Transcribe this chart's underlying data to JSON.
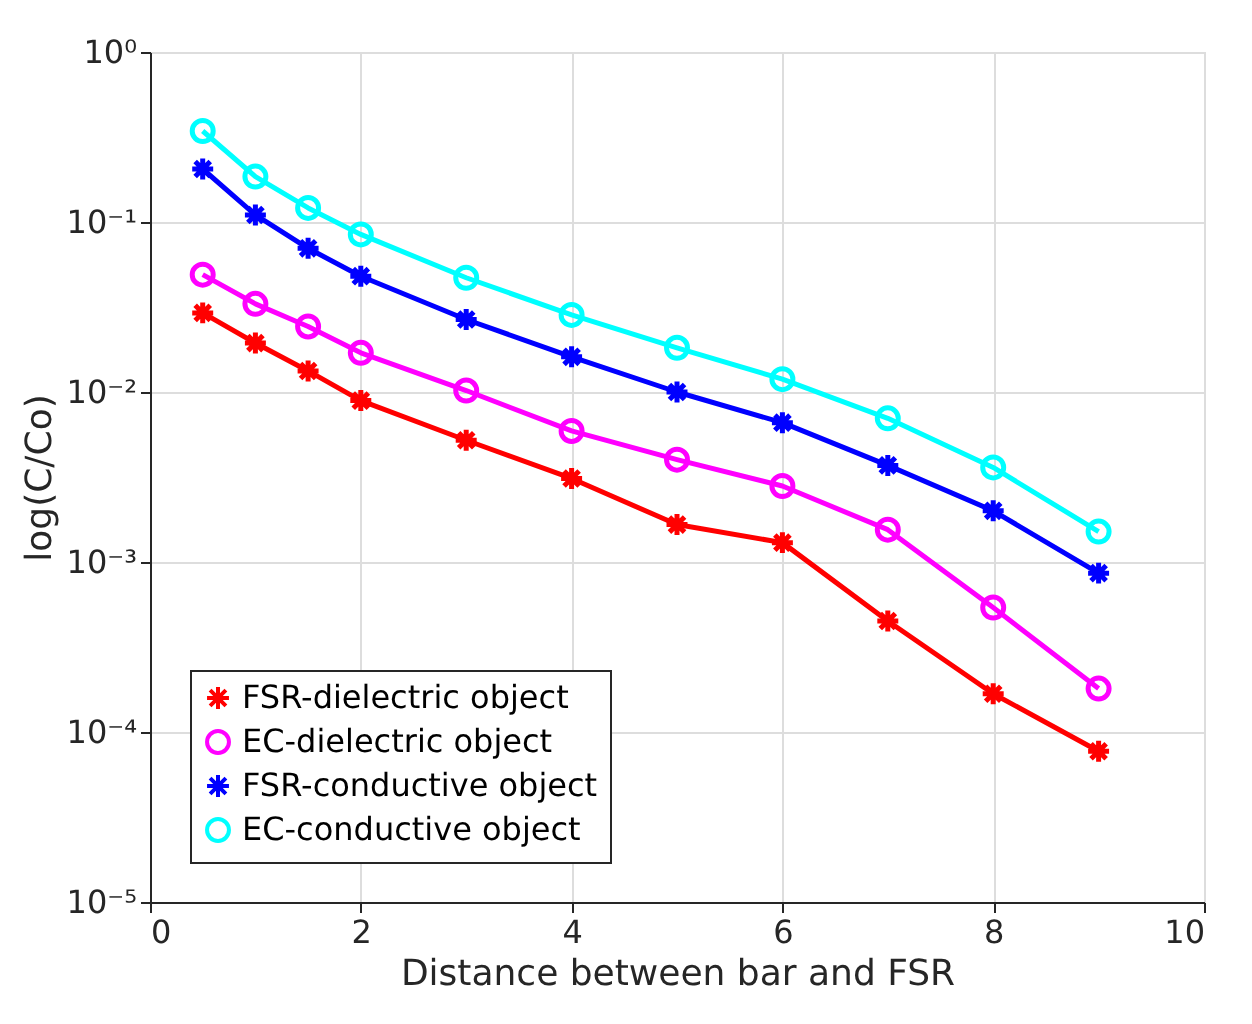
{
  "chart_data": {
    "type": "line",
    "xlabel": "Distance between bar and FSR",
    "ylabel": "log(C/Co)",
    "x": [
      0.5,
      1,
      1.5,
      2,
      3,
      4,
      5,
      6,
      7,
      8,
      9
    ],
    "series": [
      {
        "name": "FSR-dielectric object",
        "color": "#ff0000",
        "marker": "cross",
        "values": [
          0.0292,
          0.0194,
          0.0133,
          0.0089,
          0.0052,
          0.0031,
          0.00166,
          0.0013,
          0.00045,
          0.000168,
          7.7e-05
        ]
      },
      {
        "name": "EC-dielectric object",
        "color": "#ff00ff",
        "marker": "circle",
        "values": [
          0.049,
          0.033,
          0.0243,
          0.017,
          0.0102,
          0.0059,
          0.004,
          0.0028,
          0.00155,
          0.00054,
          0.00018
        ]
      },
      {
        "name": "FSR-conductive object",
        "color": "#0000ff",
        "marker": "cross",
        "values": [
          0.205,
          0.11,
          0.07,
          0.048,
          0.0267,
          0.0161,
          0.01,
          0.0066,
          0.0037,
          0.002,
          0.00086
        ]
      },
      {
        "name": "EC-conductive object",
        "color": "#00ffff",
        "marker": "circle",
        "values": [
          0.343,
          0.185,
          0.121,
          0.0845,
          0.047,
          0.0284,
          0.0182,
          0.0119,
          0.007,
          0.0036,
          0.00151
        ]
      }
    ],
    "xlim": [
      0,
      10
    ],
    "xticks": [
      0,
      2,
      4,
      6,
      8,
      10
    ],
    "ylim": [
      1e-05,
      1
    ],
    "log": "y",
    "yticks": [
      {
        "value": 1e-05,
        "label": "10⁻⁵"
      },
      {
        "value": 0.0001,
        "label": "10⁻⁴"
      },
      {
        "value": 0.001,
        "label": "10⁻³"
      },
      {
        "value": 0.01,
        "label": "10⁻²"
      },
      {
        "value": 0.1,
        "label": "10⁻¹"
      },
      {
        "value": 1,
        "label": "10⁰"
      }
    ],
    "grid": true,
    "legend": "bottom left",
    "line_style": "solid"
  }
}
